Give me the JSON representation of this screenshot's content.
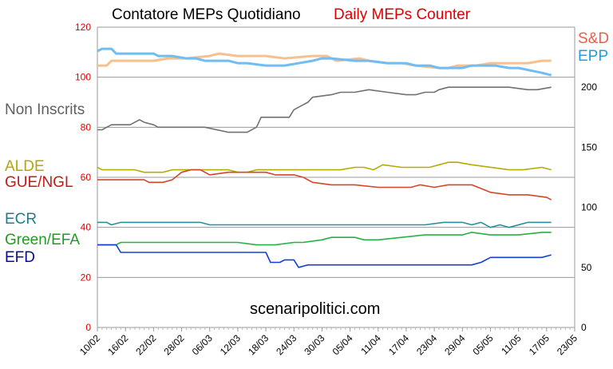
{
  "title": {
    "italian": "Contatore MEPs Quotidiano",
    "english": "Daily MEPs Counter"
  },
  "watermark": "scenaripolitici.com",
  "chart_data": {
    "type": "line",
    "x_tick_labels": [
      "10/02",
      "16/02",
      "22/02",
      "28/02",
      "06/03",
      "12/03",
      "18/03",
      "24/03",
      "30/03",
      "05/04",
      "11/04",
      "17/04",
      "23/04",
      "29/04",
      "05/05",
      "11/05",
      "17/05",
      "23/05"
    ],
    "x_range_days": [
      0,
      102
    ],
    "y_left": {
      "range": [
        0,
        120
      ],
      "ticks": [
        0,
        20,
        40,
        60,
        80,
        100,
        120
      ],
      "color": "#e00000"
    },
    "y_right": {
      "range": [
        0,
        250
      ],
      "ticks": [
        0,
        50,
        100,
        150,
        200
      ],
      "color": "#000000"
    },
    "grid": true,
    "series": [
      {
        "name": "S&D",
        "axis": "right",
        "color": "#f7c08e",
        "label_color": "#e8604a",
        "x": [
          0,
          2,
          3,
          6,
          12,
          15,
          19,
          24,
          26,
          30,
          33,
          36,
          40,
          46,
          49,
          51,
          56,
          58,
          62,
          65,
          68,
          73,
          75,
          77,
          81,
          84,
          88,
          92,
          95,
          97
        ],
        "y": [
          218,
          218,
          222,
          222,
          222,
          224,
          224,
          226,
          228,
          226,
          226,
          226,
          224,
          226,
          226,
          222,
          224,
          222,
          220,
          220,
          218,
          216,
          216,
          218,
          218,
          220,
          220,
          220,
          222,
          222
        ]
      },
      {
        "name": "EPP",
        "axis": "right",
        "color": "#6fbdf2",
        "label_color": "#1e9fe0",
        "x": [
          0,
          1,
          3,
          4,
          12,
          13,
          16,
          19,
          21,
          23,
          25,
          28,
          30,
          32,
          36,
          38,
          40,
          46,
          48,
          50,
          55,
          58,
          62,
          66,
          68,
          71,
          73,
          75,
          78,
          80,
          85,
          88,
          90,
          95,
          97
        ],
        "y": [
          230,
          232,
          232,
          228,
          228,
          226,
          226,
          224,
          224,
          222,
          222,
          222,
          220,
          220,
          218,
          218,
          218,
          222,
          224,
          224,
          222,
          222,
          220,
          220,
          218,
          218,
          216,
          216,
          216,
          218,
          218,
          216,
          216,
          212,
          210
        ]
      },
      {
        "name": "Non Inscrits",
        "axis": "left",
        "color": "#707070",
        "label_color": "#606060",
        "x": [
          0,
          1,
          2,
          3,
          5,
          7,
          9,
          10,
          12,
          13,
          15,
          19,
          21,
          23,
          28,
          29,
          32,
          34,
          35,
          37,
          41,
          42,
          45,
          46,
          50,
          52,
          55,
          58,
          62,
          66,
          68,
          70,
          72,
          73,
          75,
          77,
          84,
          88,
          92,
          94,
          97
        ],
        "y": [
          79,
          79,
          80,
          81,
          81,
          81,
          83,
          82,
          81,
          80,
          80,
          80,
          80,
          80,
          78,
          78,
          78,
          80,
          84,
          84,
          84,
          87,
          90,
          92,
          93,
          94,
          94,
          95,
          94,
          93,
          93,
          94,
          94,
          95,
          96,
          96,
          96,
          96,
          95,
          95,
          96
        ]
      },
      {
        "name": "ALDE",
        "axis": "left",
        "color": "#b4ac00",
        "label_color": "#b4a800",
        "x": [
          0,
          1,
          3,
          5,
          8,
          10,
          14,
          16,
          18,
          20,
          26,
          28,
          30,
          32,
          34,
          40,
          46,
          48,
          52,
          55,
          57,
          59,
          61,
          65,
          68,
          71,
          75,
          77,
          80,
          88,
          91,
          95,
          97
        ],
        "y": [
          64,
          63,
          63,
          63,
          63,
          62,
          62,
          63,
          63,
          63,
          63,
          63,
          62,
          62,
          63,
          63,
          63,
          63,
          63,
          64,
          64,
          63,
          65,
          64,
          64,
          64,
          66,
          66,
          65,
          63,
          63,
          64,
          63
        ]
      },
      {
        "name": "GUE/NGL",
        "axis": "left",
        "color": "#d4462a",
        "label_color": "#c41a1a",
        "x": [
          0,
          2,
          4,
          7,
          10,
          11,
          13,
          14,
          16,
          18,
          20,
          22,
          24,
          28,
          30,
          32,
          34,
          36,
          38,
          42,
          44,
          46,
          50,
          55,
          60,
          64,
          66,
          67,
          69,
          72,
          75,
          78,
          80,
          84,
          88,
          92,
          96,
          97
        ],
        "y": [
          59,
          59,
          59,
          59,
          59,
          58,
          58,
          58,
          59,
          62,
          63,
          63,
          61,
          62,
          62,
          62,
          62,
          62,
          61,
          61,
          60,
          58,
          57,
          57,
          56,
          56,
          56,
          56,
          57,
          56,
          57,
          57,
          57,
          54,
          53,
          53,
          52,
          51
        ]
      },
      {
        "name": "ECR",
        "axis": "left",
        "color": "#2a8f9a",
        "label_color": "#1a7f8a",
        "x": [
          0,
          2,
          3,
          5,
          10,
          15,
          20,
          22,
          24,
          30,
          40,
          50,
          60,
          65,
          70,
          74,
          76,
          78,
          80,
          82,
          84,
          86,
          88,
          92,
          97
        ],
        "y": [
          42,
          42,
          41,
          42,
          42,
          42,
          42,
          42,
          41,
          41,
          41,
          41,
          41,
          41,
          41,
          42,
          42,
          42,
          41,
          42,
          40,
          41,
          40,
          42,
          42
        ]
      },
      {
        "name": "Green/EFA",
        "axis": "left",
        "color": "#27b143",
        "label_color": "#249a24",
        "x": [
          0,
          2,
          4,
          5,
          10,
          20,
          28,
          30,
          34,
          36,
          38,
          42,
          44,
          48,
          50,
          55,
          57,
          60,
          65,
          70,
          72,
          75,
          78,
          80,
          84,
          85,
          90,
          95,
          97
        ],
        "y": [
          33,
          33,
          33,
          34,
          34,
          34,
          34,
          34,
          33,
          33,
          33,
          34,
          34,
          35,
          36,
          36,
          35,
          35,
          36,
          37,
          37,
          37,
          37,
          38,
          37,
          37,
          37,
          38,
          38
        ]
      },
      {
        "name": "EFD",
        "axis": "left",
        "color": "#1040d8",
        "label_color": "#0a0a9a",
        "x": [
          0,
          2,
          4,
          5,
          10,
          20,
          30,
          34,
          36,
          37,
          39,
          40,
          42,
          43,
          45,
          50,
          60,
          70,
          72,
          74,
          76,
          78,
          80,
          82,
          84,
          86,
          88,
          90,
          95,
          97
        ],
        "y": [
          33,
          33,
          33,
          30,
          30,
          30,
          30,
          30,
          30,
          26,
          26,
          27,
          27,
          24,
          25,
          25,
          25,
          25,
          25,
          25,
          25,
          25,
          25,
          26,
          28,
          28,
          28,
          28,
          28,
          29
        ]
      }
    ]
  }
}
